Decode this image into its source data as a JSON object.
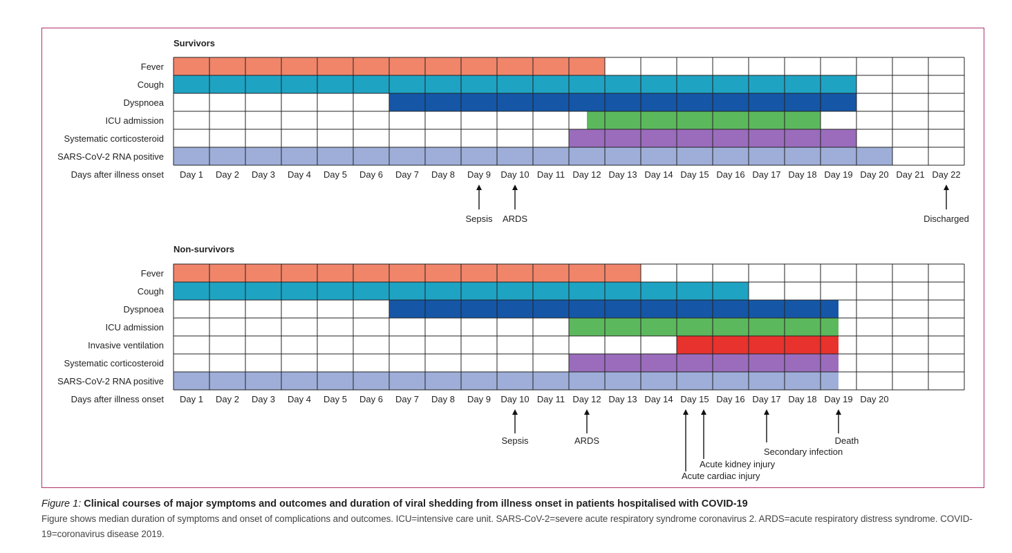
{
  "chart_data": [
    {
      "type": "timeline",
      "title": "Survivors",
      "axis_label": "Days after illness onset",
      "days": [
        "Day 1",
        "Day 2",
        "Day 3",
        "Day 4",
        "Day 5",
        "Day 6",
        "Day 7",
        "Day 8",
        "Day 9",
        "Day 10",
        "Day 11",
        "Day 12",
        "Day 13",
        "Day 14",
        "Day 15",
        "Day 16",
        "Day 17",
        "Day 18",
        "Day 19",
        "Day 20",
        "Day 21",
        "Day 22"
      ],
      "rows": [
        {
          "label": "Fever",
          "start": 1,
          "end": 12,
          "color": "#f0856a"
        },
        {
          "label": "Cough",
          "start": 1,
          "end": 19,
          "color": "#1fa3c3"
        },
        {
          "label": "Dyspnoea",
          "start": 7,
          "end": 19,
          "color": "#1557a6"
        },
        {
          "label": "ICU admission",
          "start": 12.5,
          "end": 18,
          "color": "#5cb85c"
        },
        {
          "label": "Systematic corticosteroid",
          "start": 12,
          "end": 19,
          "color": "#9b6cbc"
        },
        {
          "label": "SARS-CoV-2 RNA positive",
          "start": 1,
          "end": 20,
          "color": "#9eaed8"
        }
      ],
      "events": [
        {
          "label": "Sepsis",
          "day": 9
        },
        {
          "label": "ARDS",
          "day": 10
        },
        {
          "label": "Discharged",
          "day": 22
        }
      ]
    },
    {
      "type": "timeline",
      "title": "Non-survivors",
      "axis_label": "Days after illness onset",
      "days": [
        "Day 1",
        "Day 2",
        "Day 3",
        "Day 4",
        "Day 5",
        "Day 6",
        "Day 7",
        "Day 8",
        "Day 9",
        "Day 10",
        "Day 11",
        "Day 12",
        "Day 13",
        "Day 14",
        "Day 15",
        "Day 16",
        "Day 17",
        "Day 18",
        "Day 19",
        "Day 20"
      ],
      "rows": [
        {
          "label": "Fever",
          "start": 1,
          "end": 13,
          "color": "#f0856a"
        },
        {
          "label": "Cough",
          "start": 1,
          "end": 16,
          "color": "#1fa3c3"
        },
        {
          "label": "Dyspnoea",
          "start": 7,
          "end": 18.5,
          "color": "#1557a6"
        },
        {
          "label": "ICU admission",
          "start": 12,
          "end": 18.5,
          "color": "#5cb85c"
        },
        {
          "label": "Invasive ventilation",
          "start": 15,
          "end": 18.5,
          "color": "#e8322d"
        },
        {
          "label": "Systematic corticosteroid",
          "start": 12,
          "end": 18.5,
          "color": "#9b6cbc"
        },
        {
          "label": "SARS-CoV-2 RNA positive",
          "start": 1,
          "end": 18.5,
          "color": "#9eaed8"
        }
      ],
      "events": [
        {
          "label": "Sepsis",
          "day": 10
        },
        {
          "label": "ARDS",
          "day": 12
        },
        {
          "label": "Acute cardiac injury",
          "day": 14.75
        },
        {
          "label": "Acute kidney injury",
          "day": 15.25
        },
        {
          "label": "Secondary infection",
          "day": 17
        },
        {
          "label": "Death",
          "day": 19
        }
      ]
    }
  ],
  "caption": {
    "figure_label": "Figure 1:",
    "title": "Clinical courses of major symptoms and outcomes and duration of viral shedding from illness onset in patients hospitalised with COVID-19",
    "body": "Figure shows median duration of symptoms and onset of complications and outcomes. ICU=intensive care unit. SARS-CoV-2=severe acute respiratory syndrome coronavirus 2. ARDS=acute respiratory distress syndrome. COVID-19=coronavirus disease 2019."
  }
}
